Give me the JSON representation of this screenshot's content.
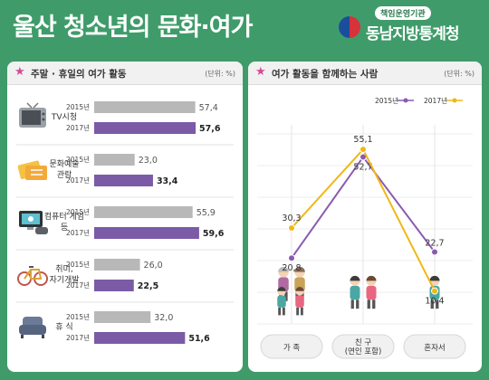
{
  "header": {
    "title": "울산 청소년의 문화·여가",
    "brand_tag": "책임운영기관",
    "brand_name": "동남지방통계청"
  },
  "colors": {
    "background": "#3f9c6a",
    "bar_2015": "#b8b8b8",
    "bar_2017": "#7b5aa6",
    "line_2015": "#8a5bb0",
    "line_2017": "#f0b816"
  },
  "chart_data": [
    {
      "type": "bar",
      "title": "주말 · 휴일의 여가 활동",
      "unit": "(단위: %)",
      "categories": [
        "TV시청",
        "문화예술 관람",
        "컴퓨터 게임 등",
        "취미, 자기개발",
        "휴 식"
      ],
      "icons": [
        "tv-icon",
        "ticket-icon",
        "game-console-icon",
        "bicycle-icon",
        "armchair-icon"
      ],
      "series": [
        {
          "name": "2015년",
          "values": [
            57.4,
            23.0,
            55.9,
            26.0,
            32.0
          ],
          "labels": [
            "57,4",
            "23,0",
            "55,9",
            "26,0",
            "32,0"
          ]
        },
        {
          "name": "2017년",
          "values": [
            57.6,
            33.4,
            59.6,
            22.5,
            51.6
          ],
          "labels": [
            "57,6",
            "33,4",
            "59,6",
            "22,5",
            "51,6"
          ]
        }
      ],
      "xlim": [
        0,
        72
      ]
    },
    {
      "type": "line",
      "title": "여가 활동을 함께하는 사람",
      "unit": "(단위: %)",
      "categories": [
        "가 족",
        "친 구\n(연인 포함)",
        "혼자서"
      ],
      "icons": [
        "family-icon",
        "friends-icon",
        "alone-icon"
      ],
      "legend": [
        "2015년",
        "2017년"
      ],
      "series": [
        {
          "name": "2015년",
          "values": [
            20.8,
            52.7,
            22.7
          ],
          "labels": [
            "20,8",
            "52,7",
            "22,7"
          ]
        },
        {
          "name": "2017년",
          "values": [
            30.3,
            55.1,
            10.4
          ],
          "labels": [
            "30,3",
            "55,1",
            "10,4"
          ]
        }
      ],
      "ylim": [
        0,
        60
      ]
    }
  ]
}
